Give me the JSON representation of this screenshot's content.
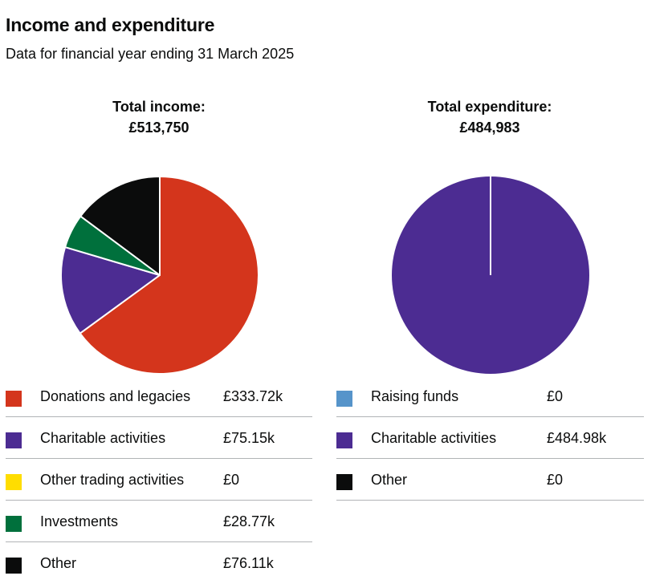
{
  "heading": "Income and expenditure",
  "subheading": "Data for financial year ending 31 March 2025",
  "chart_data": [
    {
      "type": "pie",
      "title_line1": "Total income:",
      "title_line2": "£513,750",
      "categories": [
        "Donations and legacies",
        "Charitable activities",
        "Other trading activities",
        "Investments",
        "Other"
      ],
      "values": [
        333720,
        75150,
        0,
        28770,
        76110
      ],
      "value_labels": [
        "£333.72k",
        "£75.15k",
        "£0",
        "£28.77k",
        "£76.11k"
      ],
      "colors": [
        "#d4351c",
        "#4c2c92",
        "#ffdd00",
        "#00703c",
        "#0b0c0c"
      ],
      "legend_position": "bottom"
    },
    {
      "type": "pie",
      "title_line1": "Total expenditure:",
      "title_line2": "£484,983",
      "categories": [
        "Raising funds",
        "Charitable activities",
        "Other"
      ],
      "values": [
        0,
        484980,
        0
      ],
      "value_labels": [
        "£0",
        "£484.98k",
        "£0"
      ],
      "colors": [
        "#5694ca",
        "#4c2c92",
        "#0b0c0c"
      ],
      "legend_position": "bottom"
    }
  ]
}
